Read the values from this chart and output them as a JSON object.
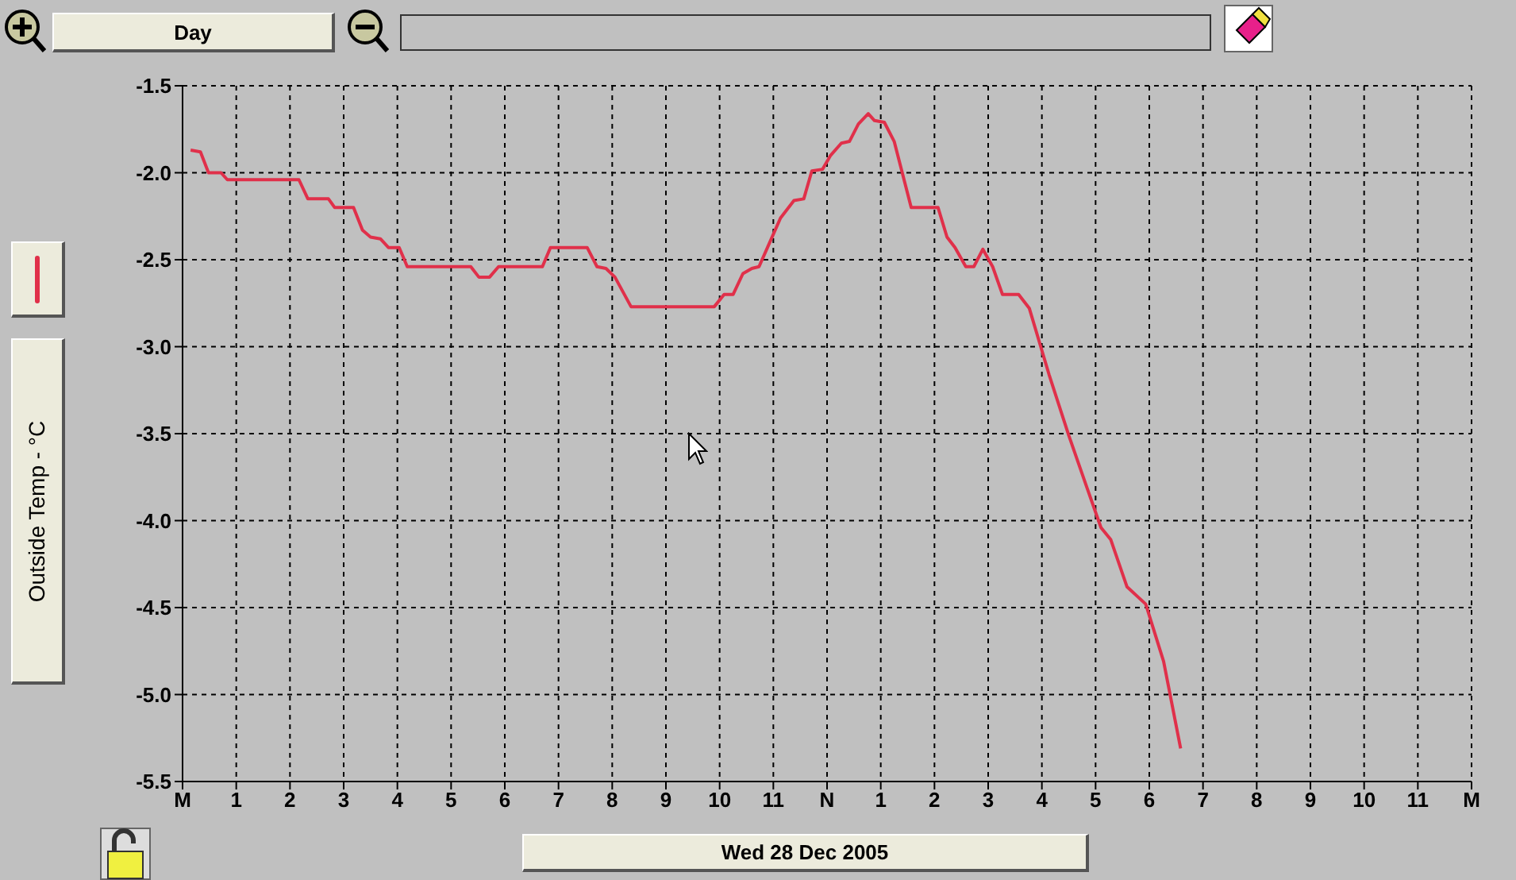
{
  "chart_data": {
    "type": "line",
    "xlabel": "Wed 28 Dec 2005",
    "annotations": [
      "Day"
    ],
    "x": [
      "2005-12-28T00:09",
      "2005-12-28T00:20",
      "2005-12-28T00:29",
      "2005-12-28T00:43",
      "2005-12-28T00:50",
      "2005-12-28T02:10",
      "2005-12-28T02:20",
      "2005-12-28T02:43",
      "2005-12-28T02:50",
      "2005-12-28T03:11",
      "2005-12-28T03:21",
      "2005-12-28T03:30",
      "2005-12-28T03:41",
      "2005-12-28T03:50",
      "2005-12-28T04:02",
      "2005-12-28T04:11",
      "2005-12-28T05:22",
      "2005-12-28T05:31",
      "2005-12-28T05:43",
      "2005-12-28T05:53",
      "2005-12-28T06:42",
      "2005-12-28T06:51",
      "2005-12-28T07:32",
      "2005-12-28T07:43",
      "2005-12-28T07:53",
      "2005-12-28T08:03",
      "2005-12-28T08:21",
      "2005-12-28T09:54",
      "2005-12-28T10:05",
      "2005-12-28T10:15",
      "2005-12-28T10:26",
      "2005-12-28T10:36",
      "2005-12-28T10:44",
      "2005-12-28T10:56",
      "2005-12-28T11:08",
      "2005-12-28T11:23",
      "2005-12-28T11:34",
      "2005-12-28T11:43",
      "2005-12-28T11:55",
      "2005-12-28T12:04",
      "2005-12-28T12:16",
      "2005-12-28T12:25",
      "2005-12-28T12:35",
      "2005-12-28T12:46",
      "2005-12-28T12:53",
      "2005-12-28T13:04",
      "2005-12-28T13:15",
      "2005-12-28T13:34",
      "2005-12-28T14:04",
      "2005-12-28T14:14",
      "2005-12-28T14:23",
      "2005-12-28T14:35",
      "2005-12-28T14:44",
      "2005-12-28T14:54",
      "2005-12-28T15:05",
      "2005-12-28T15:16",
      "2005-12-28T15:34",
      "2005-12-28T15:46",
      "2005-12-28T16:08",
      "2005-12-28T16:30",
      "2005-12-28T16:51",
      "2005-12-28T17:06",
      "2005-12-28T17:17",
      "2005-12-28T17:35",
      "2005-12-28T17:56",
      "2005-12-28T18:16",
      "2005-12-28T18:35"
    ],
    "series": [
      {
        "name": "Outside Temp - °C",
        "color": "#e0304a",
        "values": [
          -1.87,
          -1.88,
          -2.0,
          -2.0,
          -2.04,
          -2.04,
          -2.15,
          -2.15,
          -2.2,
          -2.2,
          -2.33,
          -2.37,
          -2.38,
          -2.43,
          -2.43,
          -2.54,
          -2.54,
          -2.6,
          -2.6,
          -2.54,
          -2.54,
          -2.43,
          -2.43,
          -2.54,
          -2.55,
          -2.6,
          -2.77,
          -2.77,
          -2.7,
          -2.7,
          -2.58,
          -2.55,
          -2.54,
          -2.4,
          -2.26,
          -2.16,
          -2.15,
          -1.99,
          -1.98,
          -1.9,
          -1.83,
          -1.82,
          -1.72,
          -1.66,
          -1.7,
          -1.71,
          -1.82,
          -2.2,
          -2.2,
          -2.37,
          -2.43,
          -2.54,
          -2.54,
          -2.44,
          -2.54,
          -2.7,
          -2.7,
          -2.78,
          -3.16,
          -3.51,
          -3.82,
          -4.04,
          -4.11,
          -4.38,
          -4.48,
          -4.81,
          -5.31
        ]
      }
    ],
    "xlim": [
      "2005-12-28T00:00",
      "2005-12-29T00:00"
    ],
    "xticks": [
      {
        "value": "2005-12-28T00:00",
        "label": "M"
      },
      {
        "value": "2005-12-28T01:00",
        "label": "1"
      },
      {
        "value": "2005-12-28T02:00",
        "label": "2"
      },
      {
        "value": "2005-12-28T03:00",
        "label": "3"
      },
      {
        "value": "2005-12-28T04:00",
        "label": "4"
      },
      {
        "value": "2005-12-28T05:00",
        "label": "5"
      },
      {
        "value": "2005-12-28T06:00",
        "label": "6"
      },
      {
        "value": "2005-12-28T07:00",
        "label": "7"
      },
      {
        "value": "2005-12-28T08:00",
        "label": "8"
      },
      {
        "value": "2005-12-28T09:00",
        "label": "9"
      },
      {
        "value": "2005-12-28T10:00",
        "label": "10"
      },
      {
        "value": "2005-12-28T11:00",
        "label": "11"
      },
      {
        "value": "2005-12-28T12:00",
        "label": "N"
      },
      {
        "value": "2005-12-28T13:00",
        "label": "1"
      },
      {
        "value": "2005-12-28T14:00",
        "label": "2"
      },
      {
        "value": "2005-12-28T15:00",
        "label": "3"
      },
      {
        "value": "2005-12-28T16:00",
        "label": "4"
      },
      {
        "value": "2005-12-28T17:00",
        "label": "5"
      },
      {
        "value": "2005-12-28T18:00",
        "label": "6"
      },
      {
        "value": "2005-12-28T19:00",
        "label": "7"
      },
      {
        "value": "2005-12-28T20:00",
        "label": "8"
      },
      {
        "value": "2005-12-28T21:00",
        "label": "9"
      },
      {
        "value": "2005-12-28T22:00",
        "label": "10"
      },
      {
        "value": "2005-12-28T23:00",
        "label": "11"
      },
      {
        "value": "2005-12-29T00:00",
        "label": "M"
      }
    ],
    "ylim": [
      -5.5,
      -1.5
    ],
    "yticks": [
      -5.5,
      {
        "value": -5,
        "label": "-5.0"
      },
      -4.5,
      {
        "value": -4,
        "label": "-4.0"
      },
      -3.5,
      {
        "value": -3,
        "label": "-3.0"
      },
      -2.5,
      {
        "value": -2,
        "label": "-2.0"
      },
      -1.5
    ],
    "grid": true,
    "legend": "left",
    "marker": "none",
    "line_style": "solid"
  }
}
